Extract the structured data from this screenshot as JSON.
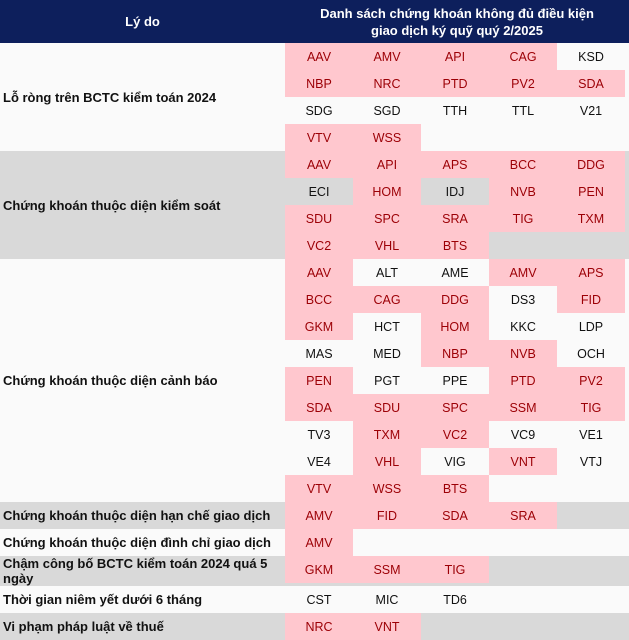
{
  "header": {
    "reason_label": "Lý do",
    "list_label_line1": "Danh sách chứng khoán không đủ điều kiện",
    "list_label_line2": "giao dịch ký quỹ quý 2/2025"
  },
  "colors": {
    "header_bg": "#0d1f5c",
    "highlight_bg": "#ffc7ce",
    "highlight_text": "#9c0006",
    "alt_row_bg": "#d9d9d9"
  },
  "groups": [
    {
      "reason": "Lỗ ròng trên BCTC kiểm toán 2024",
      "rows": [
        [
          {
            "s": "AAV",
            "h": 1
          },
          {
            "s": "AMV",
            "h": 1
          },
          {
            "s": "API",
            "h": 1
          },
          {
            "s": "CAG",
            "h": 1
          },
          {
            "s": "KSD",
            "h": 0
          }
        ],
        [
          {
            "s": "NBP",
            "h": 1
          },
          {
            "s": "NRC",
            "h": 1
          },
          {
            "s": "PTD",
            "h": 1
          },
          {
            "s": "PV2",
            "h": 1
          },
          {
            "s": "SDA",
            "h": 1
          }
        ],
        [
          {
            "s": "SDG",
            "h": 0
          },
          {
            "s": "SGD",
            "h": 0
          },
          {
            "s": "TTH",
            "h": 0
          },
          {
            "s": "TTL",
            "h": 0
          },
          {
            "s": "V21",
            "h": 0
          }
        ],
        [
          {
            "s": "VTV",
            "h": 1
          },
          {
            "s": "WSS",
            "h": 1
          },
          {
            "s": "",
            "h": 0
          },
          {
            "s": "",
            "h": 0
          },
          {
            "s": "",
            "h": 0
          }
        ]
      ]
    },
    {
      "reason": "Chứng khoán thuộc diện kiểm soát",
      "rows": [
        [
          {
            "s": "AAV",
            "h": 1
          },
          {
            "s": "API",
            "h": 1
          },
          {
            "s": "APS",
            "h": 1
          },
          {
            "s": "BCC",
            "h": 1
          },
          {
            "s": "DDG",
            "h": 1
          }
        ],
        [
          {
            "s": "ECI",
            "h": 0
          },
          {
            "s": "HOM",
            "h": 1
          },
          {
            "s": "IDJ",
            "h": 0
          },
          {
            "s": "NVB",
            "h": 1
          },
          {
            "s": "PEN",
            "h": 1
          }
        ],
        [
          {
            "s": "SDU",
            "h": 1
          },
          {
            "s": "SPC",
            "h": 1
          },
          {
            "s": "SRA",
            "h": 1
          },
          {
            "s": "TIG",
            "h": 1
          },
          {
            "s": "TXM",
            "h": 1
          }
        ],
        [
          {
            "s": "VC2",
            "h": 1
          },
          {
            "s": "VHL",
            "h": 1
          },
          {
            "s": "BTS",
            "h": 1
          },
          {
            "s": "",
            "h": 0
          },
          {
            "s": "",
            "h": 0
          }
        ]
      ]
    },
    {
      "reason": "Chứng khoán thuộc diện cảnh báo",
      "rows": [
        [
          {
            "s": "AAV",
            "h": 1
          },
          {
            "s": "ALT",
            "h": 0
          },
          {
            "s": "AME",
            "h": 0
          },
          {
            "s": "AMV",
            "h": 1
          },
          {
            "s": "APS",
            "h": 1
          }
        ],
        [
          {
            "s": "BCC",
            "h": 1
          },
          {
            "s": "CAG",
            "h": 1
          },
          {
            "s": "DDG",
            "h": 1
          },
          {
            "s": "DS3",
            "h": 0
          },
          {
            "s": "FID",
            "h": 1
          }
        ],
        [
          {
            "s": "GKM",
            "h": 1
          },
          {
            "s": "HCT",
            "h": 0
          },
          {
            "s": "HOM",
            "h": 1
          },
          {
            "s": "KKC",
            "h": 0
          },
          {
            "s": "LDP",
            "h": 0
          }
        ],
        [
          {
            "s": "MAS",
            "h": 0
          },
          {
            "s": "MED",
            "h": 0
          },
          {
            "s": "NBP",
            "h": 1
          },
          {
            "s": "NVB",
            "h": 1
          },
          {
            "s": "OCH",
            "h": 0
          }
        ],
        [
          {
            "s": "PEN",
            "h": 1
          },
          {
            "s": "PGT",
            "h": 0
          },
          {
            "s": "PPE",
            "h": 0
          },
          {
            "s": "PTD",
            "h": 1
          },
          {
            "s": "PV2",
            "h": 1
          }
        ],
        [
          {
            "s": "SDA",
            "h": 1
          },
          {
            "s": "SDU",
            "h": 1
          },
          {
            "s": "SPC",
            "h": 1
          },
          {
            "s": "SSM",
            "h": 1
          },
          {
            "s": "TIG",
            "h": 1
          }
        ],
        [
          {
            "s": "TV3",
            "h": 0
          },
          {
            "s": "TXM",
            "h": 1
          },
          {
            "s": "VC2",
            "h": 1
          },
          {
            "s": "VC9",
            "h": 0
          },
          {
            "s": "VE1",
            "h": 0
          }
        ],
        [
          {
            "s": "VE4",
            "h": 0
          },
          {
            "s": "VHL",
            "h": 1
          },
          {
            "s": "VIG",
            "h": 0
          },
          {
            "s": "VNT",
            "h": 1
          },
          {
            "s": "VTJ",
            "h": 0
          }
        ],
        [
          {
            "s": "VTV",
            "h": 1
          },
          {
            "s": "WSS",
            "h": 1
          },
          {
            "s": "BTS",
            "h": 1
          },
          {
            "s": "",
            "h": 0
          },
          {
            "s": "",
            "h": 0
          }
        ]
      ]
    },
    {
      "reason": "Chứng khoán thuộc diện hạn chế giao dịch",
      "rows": [
        [
          {
            "s": "AMV",
            "h": 1
          },
          {
            "s": "FID",
            "h": 1
          },
          {
            "s": "SDA",
            "h": 1
          },
          {
            "s": "SRA",
            "h": 1
          },
          {
            "s": "",
            "h": 0
          }
        ]
      ]
    },
    {
      "reason": "Chứng khoán thuộc diện đình chỉ giao dịch",
      "rows": [
        [
          {
            "s": "AMV",
            "h": 1
          },
          {
            "s": "",
            "h": 0
          },
          {
            "s": "",
            "h": 0
          },
          {
            "s": "",
            "h": 0
          },
          {
            "s": "",
            "h": 0
          }
        ]
      ]
    },
    {
      "reason": "Chậm công bố BCTC kiểm toán 2024 quá 5 ngày",
      "rows": [
        [
          {
            "s": "GKM",
            "h": 1
          },
          {
            "s": "SSM",
            "h": 1
          },
          {
            "s": "TIG",
            "h": 1
          },
          {
            "s": "",
            "h": 0
          },
          {
            "s": "",
            "h": 0
          }
        ]
      ]
    },
    {
      "reason": "Thời gian niêm yết dưới 6 tháng",
      "rows": [
        [
          {
            "s": "CST",
            "h": 0
          },
          {
            "s": "MIC",
            "h": 0
          },
          {
            "s": "TD6",
            "h": 0
          },
          {
            "s": "",
            "h": 0
          },
          {
            "s": "",
            "h": 0
          }
        ]
      ]
    },
    {
      "reason": "Vi phạm pháp luật về thuế",
      "rows": [
        [
          {
            "s": "NRC",
            "h": 1
          },
          {
            "s": "VNT",
            "h": 1
          },
          {
            "s": "",
            "h": 0
          },
          {
            "s": "",
            "h": 0
          },
          {
            "s": "",
            "h": 0
          }
        ]
      ]
    }
  ]
}
